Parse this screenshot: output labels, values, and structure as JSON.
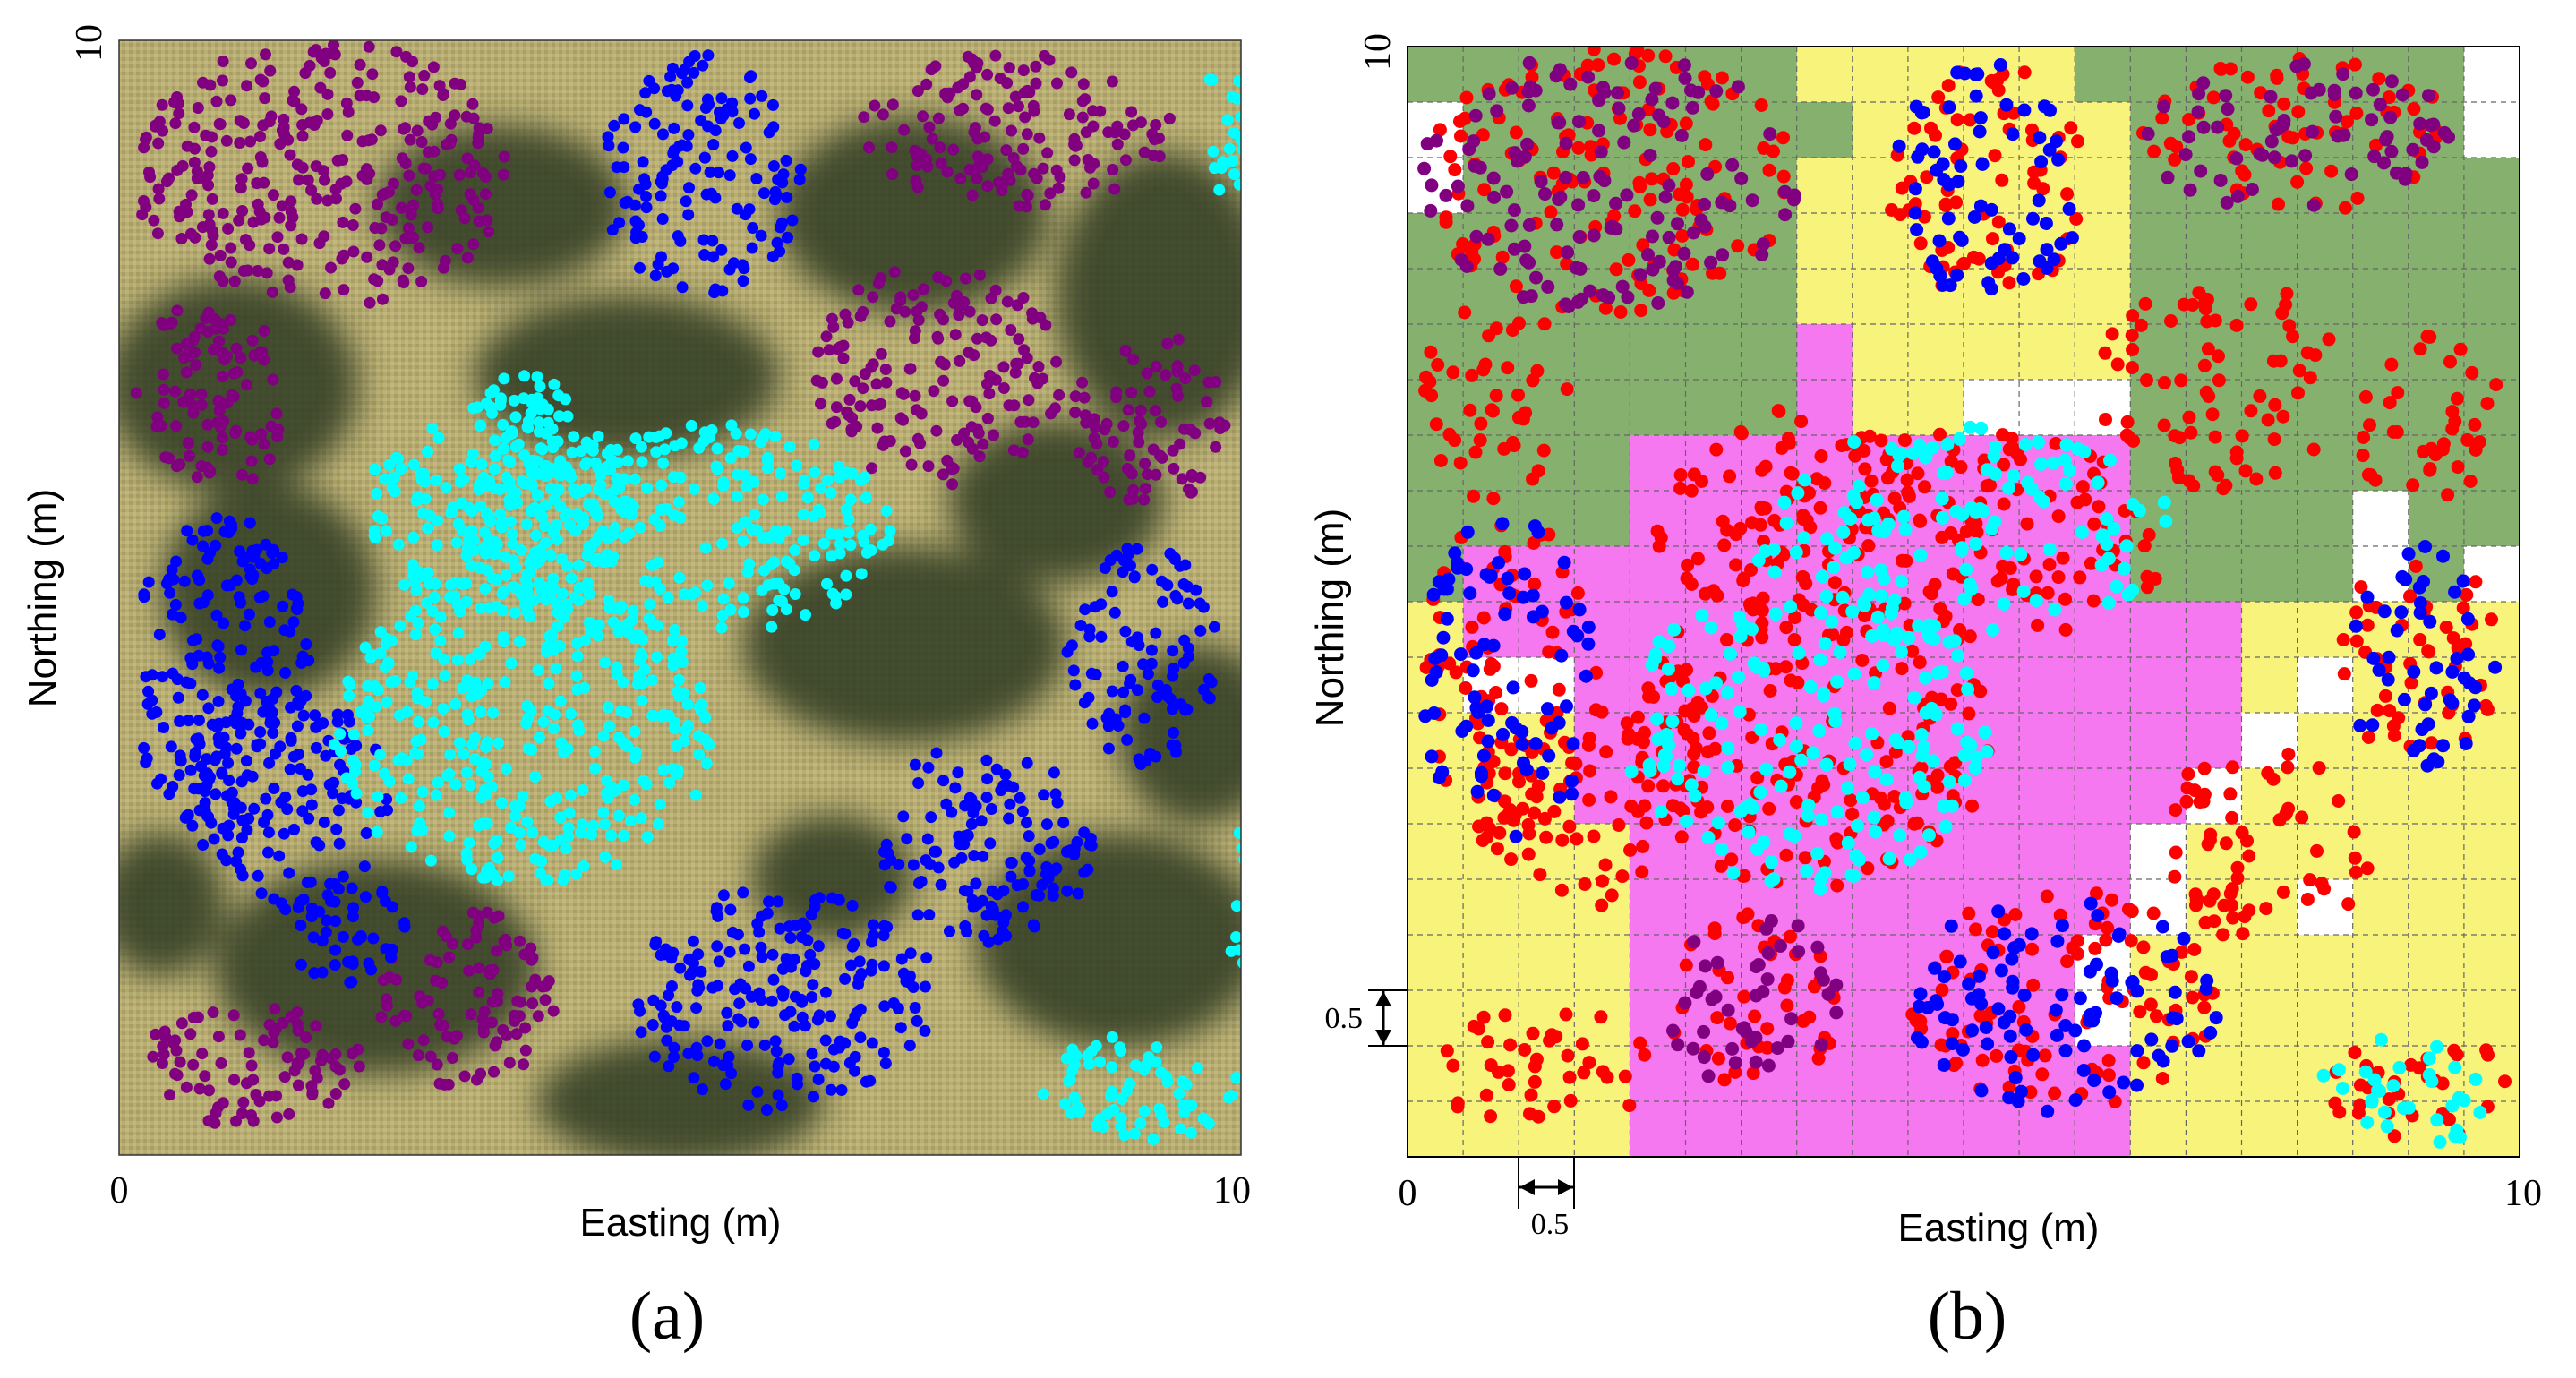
{
  "panels": [
    {
      "label": "(a)",
      "xlabel": "Easting (m)",
      "ylabel": "Northing (m)",
      "x_tick_min": "0",
      "x_tick_max": "10",
      "y_tick_max": "10"
    },
    {
      "label": "(b)",
      "xlabel": "Easting (m)",
      "ylabel": "Northing (m)",
      "x_tick_min": "0",
      "x_tick_max": "10",
      "y_tick_max": "10",
      "cell_x_label": "0.5",
      "cell_y_label": "0.5"
    }
  ],
  "chart_data": [
    {
      "type": "scatter",
      "background": "aerial image",
      "xlim": [
        0,
        10
      ],
      "ylim": [
        0,
        10
      ],
      "series": [
        {
          "color": "#800080",
          "clusters": [
            [
              1.8,
              8.8,
              1.7,
              1.2
            ],
            [
              8.0,
              9.2,
              1.4,
              0.7
            ],
            [
              7.3,
              7.0,
              1.1,
              1.0
            ],
            [
              9.2,
              6.6,
              0.7,
              0.8
            ],
            [
              0.8,
              6.8,
              0.7,
              0.9
            ],
            [
              3.1,
              1.4,
              0.8,
              0.8
            ],
            [
              1.2,
              0.8,
              1.0,
              0.6
            ]
          ]
        },
        {
          "color": "#0000ff",
          "clusters": [
            [
              5.2,
              8.8,
              0.9,
              1.1
            ],
            [
              0.9,
              4.3,
              0.8,
              1.5
            ],
            [
              1.5,
              3.2,
              0.9,
              1.0
            ],
            [
              5.9,
              1.4,
              1.4,
              1.0
            ],
            [
              7.7,
              2.8,
              1.0,
              0.9
            ],
            [
              9.1,
              4.5,
              0.7,
              1.0
            ],
            [
              2.0,
              2.0,
              0.6,
              0.5
            ]
          ]
        },
        {
          "color": "#00ffff",
          "clusters": [
            [
              3.6,
              3.8,
              1.7,
              1.4
            ],
            [
              5.0,
              5.6,
              1.9,
              1.0
            ],
            [
              3.4,
              5.8,
              1.2,
              1.0
            ],
            [
              3.6,
              6.4,
              0.6,
              0.6
            ],
            [
              9.1,
              0.6,
              0.9,
              0.5
            ],
            [
              9.9,
              9.2,
              0.3,
              0.6
            ],
            [
              10.0,
              2.3,
              0.2,
              0.6
            ]
          ]
        }
      ]
    },
    {
      "type": "heatmap",
      "xlim": [
        0,
        10
      ],
      "ylim": [
        0,
        10
      ],
      "cell_size": 0.5,
      "grid": true,
      "cell_colors": {
        "green": "#85b06e",
        "yellow": "#f8f37b",
        "magenta": "#f578f0",
        "white": "#ffffff"
      },
      "cells": [
        "GGGGGGGYYYYYGGGGGGGW",
        "WGGGGGGGYYYYYGGGGGGW",
        "WGGGGGGYYYYYYGGGGGGG",
        "GGGGGGGYYYYYYGGGGGGG",
        "GGGGGGGYYYYYYGGGGGGG",
        "GGGGGGGMYYYYYGGGGGGG",
        "GGGGGGGMYYWWWGGGGGGG",
        "GGGGMMMMMMMMMGGGGGGG",
        "GGGGMMMMMMMMMGGGGWGG",
        "GMMMMMMMMMMMMGGGGWGW",
        "YMMMMMMMMMMMMMMYYYYY",
        "YWWMMMMMMMMMMMMYWYYY",
        "YYYMMMMMMMMMMMMWYYYY",
        "YYYMMMMMMMMMMMWYYYYY",
        "YYYYMMMMMMMMMWYYYYYY",
        "YYYYMMMMMMMMMWYYWYYY",
        "YYYYMMMMMMMMWYYYYYYY",
        "YYYYMMMMMMMMWYYYYYYY",
        "YYYYMMMMMMMMMYYYYYYY",
        "YYYYMMMMMMMMMYYYYYYY"
      ],
      "series": [
        {
          "color": "#ff0000",
          "clusters": [
            [
              1.8,
              8.8,
              1.7,
              1.2
            ],
            [
              8.0,
              9.2,
              1.4,
              0.7
            ],
            [
              7.3,
              7.0,
              1.1,
              1.0
            ],
            [
              9.2,
              6.6,
              0.7,
              0.8
            ],
            [
              0.8,
              6.8,
              0.7,
              0.9
            ],
            [
              3.1,
              1.4,
              0.8,
              0.8
            ],
            [
              1.2,
              0.8,
              1.0,
              0.6
            ],
            [
              5.2,
              8.8,
              0.9,
              1.1
            ],
            [
              0.9,
              4.3,
              0.8,
              1.5
            ],
            [
              1.5,
              3.2,
              0.9,
              1.0
            ],
            [
              5.9,
              1.4,
              1.4,
              1.0
            ],
            [
              7.7,
              2.8,
              1.0,
              0.9
            ],
            [
              9.1,
              4.5,
              0.7,
              1.0
            ],
            [
              3.6,
              3.8,
              1.7,
              1.4
            ],
            [
              5.0,
              5.6,
              1.9,
              1.0
            ],
            [
              3.4,
              5.8,
              1.2,
              1.0
            ],
            [
              9.1,
              0.6,
              0.9,
              0.5
            ]
          ]
        },
        {
          "color": "#0000ff",
          "clusters": [
            [
              5.2,
              8.8,
              0.9,
              1.1
            ],
            [
              0.9,
              4.3,
              0.8,
              1.5
            ],
            [
              5.9,
              1.4,
              1.4,
              1.0
            ],
            [
              9.1,
              4.5,
              0.7,
              1.0
            ]
          ]
        },
        {
          "color": "#00ffff",
          "clusters": [
            [
              3.6,
              3.8,
              1.7,
              1.4
            ],
            [
              5.0,
              5.6,
              1.9,
              1.0
            ],
            [
              9.1,
              0.6,
              0.9,
              0.5
            ]
          ]
        },
        {
          "color": "#800080",
          "clusters": [
            [
              1.8,
              8.8,
              1.7,
              1.2
            ],
            [
              8.0,
              9.2,
              1.4,
              0.7
            ],
            [
              3.1,
              1.4,
              0.8,
              0.8
            ]
          ]
        }
      ]
    }
  ]
}
